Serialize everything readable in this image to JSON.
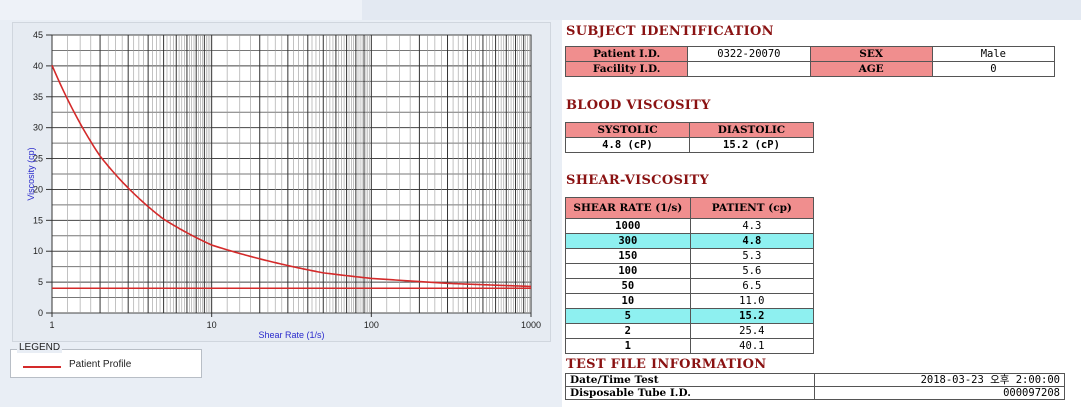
{
  "colors": {
    "curve": "#d42a2a",
    "heading": "#8a1212",
    "header_cell": "#f08e8e",
    "highlight_row": "#8ef0f0",
    "axis_text": "#2a2acc"
  },
  "legend": {
    "title": "LEGEND",
    "entry": "Patient Profile"
  },
  "subject": {
    "heading": "SUBJECT IDENTIFICATION",
    "patient_id_label": "Patient I.D.",
    "patient_id": "0322-20070",
    "sex_label": "SEX",
    "sex": "Male",
    "facility_id_label": "Facility I.D.",
    "facility_id": "",
    "age_label": "AGE",
    "age": "0"
  },
  "blood_viscosity": {
    "heading": "BLOOD VISCOSITY",
    "systolic_label": "SYSTOLIC",
    "systolic": "4.8 (cP)",
    "diastolic_label": "DIASTOLIC",
    "diastolic": "15.2 (cP)"
  },
  "shear_viscosity": {
    "heading": "SHEAR-VISCOSITY",
    "col_rate": "SHEAR RATE (1/s)",
    "col_patient": "PATIENT (cp)",
    "rows": [
      {
        "rate": "1000",
        "value": "4.3",
        "hl": false
      },
      {
        "rate": "300",
        "value": "4.8",
        "hl": true
      },
      {
        "rate": "150",
        "value": "5.3",
        "hl": false
      },
      {
        "rate": "100",
        "value": "5.6",
        "hl": false
      },
      {
        "rate": "50",
        "value": "6.5",
        "hl": false
      },
      {
        "rate": "10",
        "value": "11.0",
        "hl": false
      },
      {
        "rate": "5",
        "value": "15.2",
        "hl": true
      },
      {
        "rate": "2",
        "value": "25.4",
        "hl": false
      },
      {
        "rate": "1",
        "value": "40.1",
        "hl": false
      }
    ]
  },
  "test_file": {
    "heading": "TEST FILE INFORMATION",
    "datetime_label": "Date/Time Test",
    "datetime": "2018-03-23  오후 2:00:00",
    "tube_label": "Disposable Tube I.D.",
    "tube": "000097208"
  },
  "chart_data": {
    "type": "line",
    "xlabel": "Shear Rate (1/s)",
    "ylabel": "Viscosity (cp)",
    "x_scale": "log",
    "xlim": [
      1,
      1000
    ],
    "ylim": [
      0,
      45
    ],
    "x_ticks": [
      "1",
      "10",
      "100",
      "1000"
    ],
    "y_ticks": [
      "0",
      "5",
      "10",
      "15",
      "20",
      "25",
      "30",
      "35",
      "40",
      "45"
    ],
    "grid": true,
    "series": [
      {
        "name": "Patient Profile",
        "x": [
          1,
          2,
          5,
          10,
          50,
          100,
          150,
          300,
          1000
        ],
        "y": [
          40.1,
          25.4,
          15.2,
          11.0,
          6.5,
          5.6,
          5.3,
          4.8,
          4.3
        ]
      }
    ],
    "reference_line_y": 4.0
  }
}
